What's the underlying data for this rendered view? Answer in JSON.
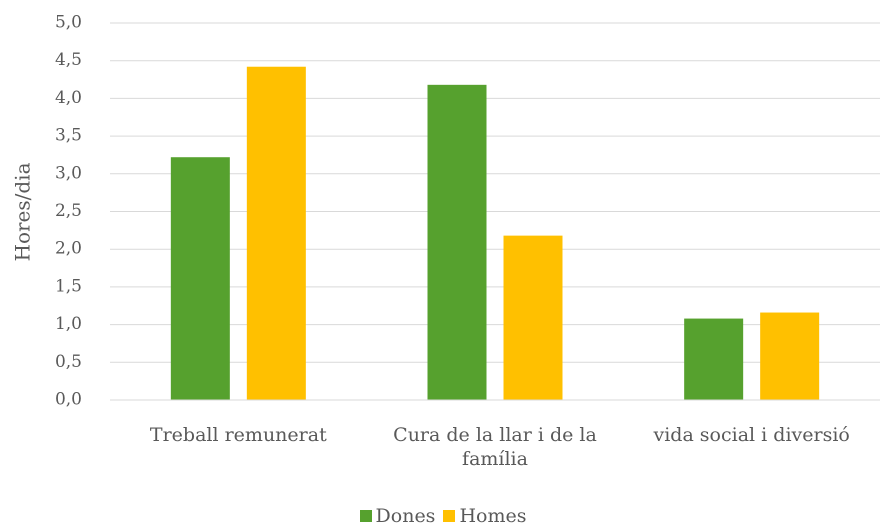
{
  "chart_data": {
    "type": "bar",
    "y_label": "Hores/dia",
    "categories": [
      "Treball remunerat",
      "Cura de la llar i de la família",
      "vida social i diversió"
    ],
    "series": [
      {
        "name": "Dones",
        "color": "#56a12e",
        "values": [
          3.22,
          4.18,
          1.08
        ]
      },
      {
        "name": "Homes",
        "color": "#ffc000",
        "values": [
          4.42,
          2.18,
          1.16
        ]
      }
    ],
    "ylim": [
      0,
      5
    ],
    "yticks": [
      {
        "value": 0,
        "label": "0,0"
      },
      {
        "value": 0.5,
        "label": "0,5"
      },
      {
        "value": 1,
        "label": "1,0"
      },
      {
        "value": 1.5,
        "label": "1,5"
      },
      {
        "value": 2,
        "label": "2,0"
      },
      {
        "value": 2.5,
        "label": "2,5"
      },
      {
        "value": 3,
        "label": "3,0"
      },
      {
        "value": 3.5,
        "label": "3,5"
      },
      {
        "value": 4,
        "label": "4,0"
      },
      {
        "value": 4.5,
        "label": "4,5"
      },
      {
        "value": 5,
        "label": "5,0"
      }
    ],
    "grid": true,
    "legend": "bottom"
  }
}
